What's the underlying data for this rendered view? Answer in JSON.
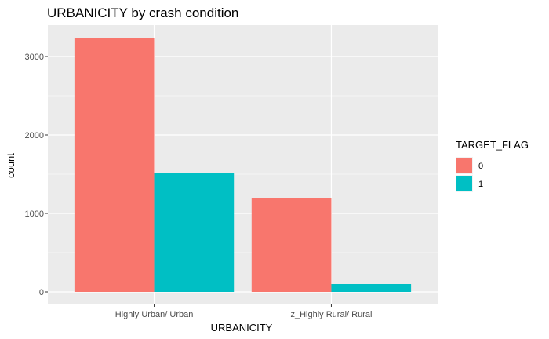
{
  "chart_data": {
    "type": "bar",
    "title": "URBANICITY by crash condition",
    "xlabel": "URBANICITY",
    "ylabel": "count",
    "categories": [
      "Highly Urban/ Urban",
      "z_Highly Rural/ Rural"
    ],
    "series": [
      {
        "name": "0",
        "values": [
          3240,
          1200
        ],
        "color": "#F8766D"
      },
      {
        "name": "1",
        "values": [
          1510,
          100
        ],
        "color": "#00BFC4"
      }
    ],
    "yticks": [
      0,
      1000,
      2000,
      3000
    ],
    "ytick_labels": [
      "0",
      "1000",
      "2000",
      "3000"
    ],
    "ylim": [
      -160,
      3400
    ],
    "grid": true,
    "legend": {
      "title": "TARGET_FLAG",
      "position": "right"
    },
    "panel_background": "#EBEBEB",
    "grid_color": "#FFFFFF"
  }
}
